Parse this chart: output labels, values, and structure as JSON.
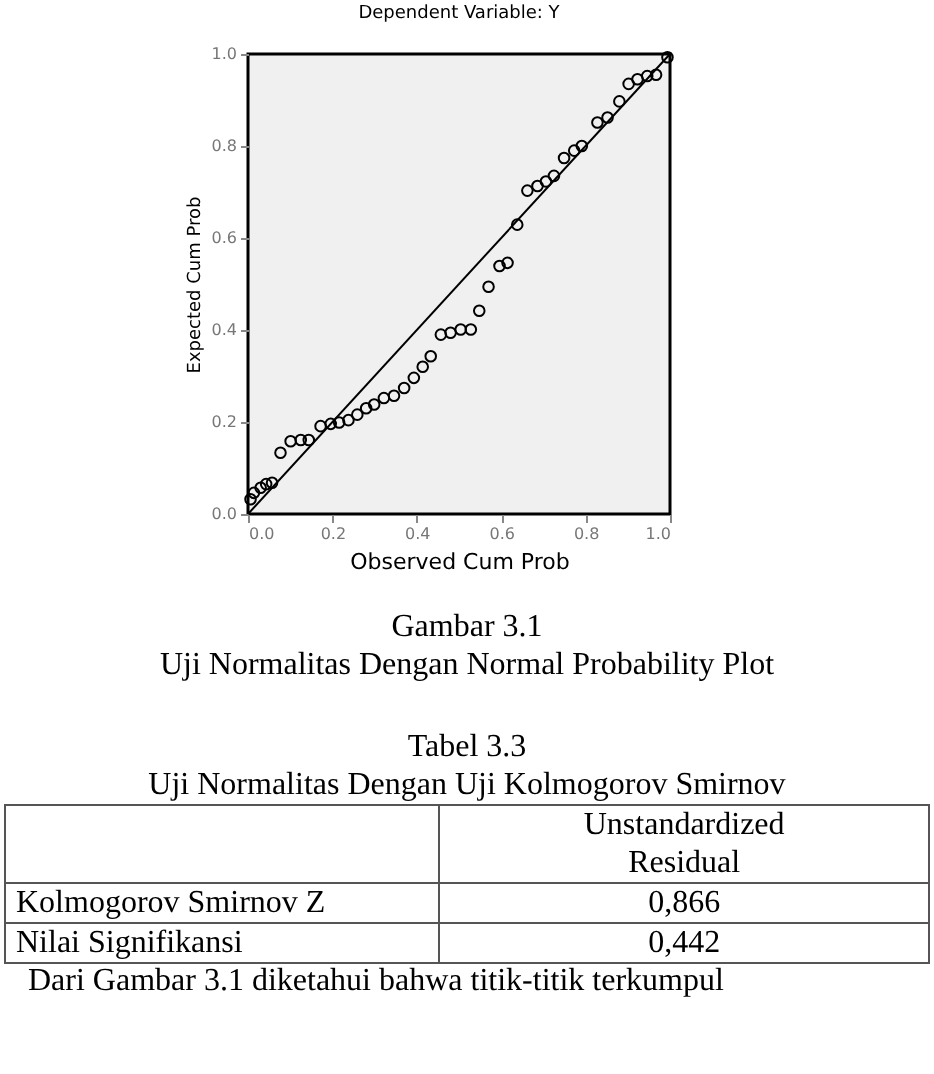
{
  "chart_data": {
    "type": "scatter",
    "title": "Dependent Variable: Y",
    "xlabel": "Observed Cum Prob",
    "ylabel": "Expected Cum Prob",
    "xlim": [
      0,
      1
    ],
    "ylim": [
      0,
      1
    ],
    "xticks": [
      {
        "value": 0,
        "label": "0.0"
      },
      {
        "value": 0.2,
        "label": "0.2"
      },
      {
        "value": 0.4,
        "label": "0.4"
      },
      {
        "value": 0.6,
        "label": "0.6"
      },
      {
        "value": 0.8,
        "label": "0.8"
      },
      {
        "value": 1,
        "label": "1.0"
      }
    ],
    "yticks": [
      {
        "value": 0,
        "label": "0.0"
      },
      {
        "value": 0.2,
        "label": "0.2"
      },
      {
        "value": 0.4,
        "label": "0.4"
      },
      {
        "value": 0.6,
        "label": "0.6"
      },
      {
        "value": 0.8,
        "label": "0.8"
      },
      {
        "value": 1,
        "label": "1.0"
      }
    ],
    "marker": "circle",
    "grid": false,
    "series": [
      {
        "color": "#000000",
        "x": [
          0.006,
          0.014,
          0.03,
          0.043,
          0.057,
          0.077,
          0.101,
          0.125,
          0.144,
          0.172,
          0.196,
          0.216,
          0.238,
          0.259,
          0.28,
          0.299,
          0.322,
          0.346,
          0.37,
          0.393,
          0.414,
          0.433,
          0.457,
          0.48,
          0.504,
          0.528,
          0.548,
          0.57,
          0.596,
          0.615,
          0.638,
          0.662,
          0.686,
          0.706,
          0.725,
          0.749,
          0.773,
          0.791,
          0.828,
          0.852,
          0.88,
          0.902,
          0.923,
          0.946,
          0.967,
          0.994
        ],
        "values": [
          0.032,
          0.046,
          0.057,
          0.065,
          0.068,
          0.133,
          0.158,
          0.161,
          0.161,
          0.191,
          0.196,
          0.199,
          0.204,
          0.216,
          0.23,
          0.238,
          0.252,
          0.257,
          0.274,
          0.296,
          0.32,
          0.343,
          0.39,
          0.394,
          0.401,
          0.401,
          0.442,
          0.494,
          0.539,
          0.546,
          0.629,
          0.703,
          0.713,
          0.723,
          0.735,
          0.774,
          0.79,
          0.8,
          0.851,
          0.862,
          0.897,
          0.935,
          0.945,
          0.952,
          0.955,
          0.993
        ]
      },
      {
        "type": "line",
        "marker": "none",
        "color": "#000000",
        "x": [
          0,
          1
        ],
        "values": [
          0,
          1
        ]
      }
    ],
    "annotations": [
      "Gambar 3.1",
      "Uji Normalitas Dengan Normal Probability Plot",
      "Tabel 3.3",
      "Uji Normalitas Dengan Uji Kolmogorov Smirnov",
      "Unstandardized Residual",
      "Kolmogorov Smirnov Z",
      "0,866",
      "Nilai Signifikansi",
      "0,442",
      "Dari Gambar 3.1 diketahui bahwa titik-titik terkumpul"
    ]
  }
}
